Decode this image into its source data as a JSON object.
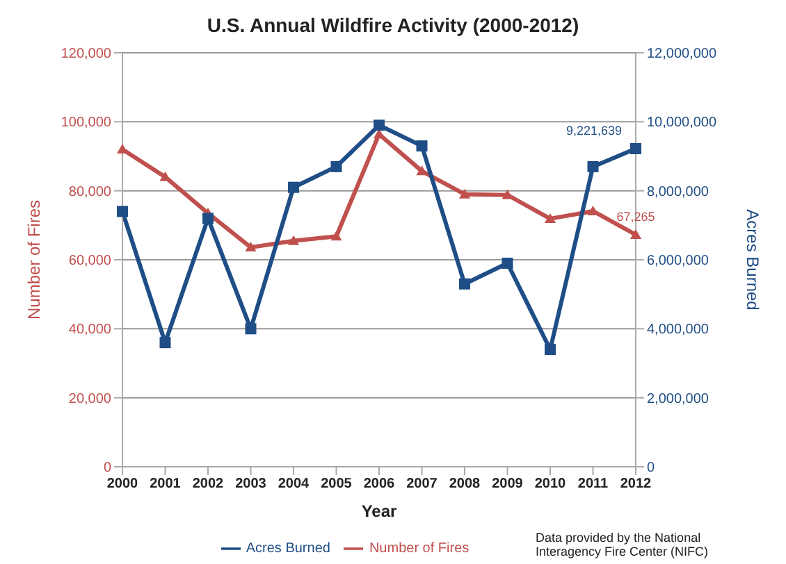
{
  "chart_data": {
    "type": "line",
    "title": "U.S. Annual Wildfire Activity (2000-2012)",
    "xlabel": "Year",
    "ylabel": "Number of Fires",
    "y2label": "Acres Burned",
    "categories": [
      "2000",
      "2001",
      "2002",
      "2003",
      "2004",
      "2005",
      "2006",
      "2007",
      "2008",
      "2009",
      "2010",
      "2011",
      "2012"
    ],
    "series": [
      {
        "name": "Number of Fires",
        "color": "#c0504d",
        "marker": "triangle",
        "values": [
          92000,
          84000,
          73500,
          63600,
          65500,
          66800,
          96400,
          85700,
          79000,
          78800,
          71900,
          74100,
          67265
        ],
        "value_labels": [
          null,
          null,
          null,
          null,
          null,
          null,
          null,
          null,
          null,
          null,
          null,
          null,
          "67,265"
        ]
      },
      {
        "name": "Acres Burned",
        "color": "#1f4e86",
        "marker": "square",
        "axis": "y2",
        "values": [
          7400000,
          3600000,
          7200000,
          4000000,
          8100000,
          8700000,
          9900000,
          9300000,
          5300000,
          5900000,
          3400000,
          8700000,
          9221639
        ],
        "value_labels": [
          null,
          null,
          null,
          null,
          null,
          null,
          null,
          null,
          null,
          null,
          null,
          null,
          "9,221,639"
        ]
      }
    ],
    "ylim": [
      0,
      120000
    ],
    "yticks": [
      0,
      {
        "value": 20000,
        "label": "20,000"
      },
      {
        "value": 40000,
        "label": "40,000"
      },
      {
        "value": 60000,
        "label": "60,000"
      },
      {
        "value": 80000,
        "label": "80,000"
      },
      {
        "value": 100000,
        "label": "100,000"
      },
      {
        "value": 120000,
        "label": "120,000"
      }
    ],
    "y2lim": [
      0,
      12000000
    ],
    "y2ticks": [
      0,
      {
        "value": 2000000,
        "label": "2,000,000"
      },
      {
        "value": 4000000,
        "label": "4,000,000"
      },
      {
        "value": 6000000,
        "label": "6,000,000"
      },
      {
        "value": 8000000,
        "label": "8,000,000"
      },
      {
        "value": 10000000,
        "label": "10,000,000"
      },
      {
        "value": 12000000,
        "label": "12,000,000"
      }
    ],
    "grid": "y",
    "legend": "bottom",
    "annotations": [
      "Data provided by the National Interagency Fire Center (NIFC)"
    ]
  }
}
